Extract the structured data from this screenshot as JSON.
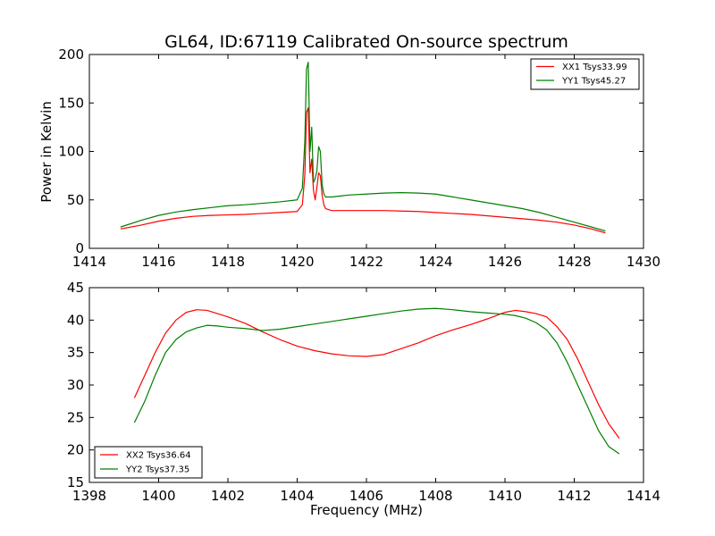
{
  "figure": {
    "title": "GL64, ID:67119 Calibrated On-source spectrum",
    "xlabel": "Frequency (MHz)",
    "top_ylabel": "Power in Kelvin"
  },
  "colors": {
    "red": "#ff0000",
    "green": "#007f00"
  },
  "chart_data": [
    {
      "type": "line",
      "title": "GL64, ID:67119 Calibrated On-source spectrum",
      "ylabel": "Power in Kelvin",
      "xlabel": "",
      "xlim": [
        1414,
        1430
      ],
      "ylim": [
        0,
        200
      ],
      "xticks": [
        1414,
        1416,
        1418,
        1420,
        1422,
        1424,
        1426,
        1428,
        1430
      ],
      "yticks": [
        0,
        50,
        100,
        150,
        200
      ],
      "grid": false,
      "legend_position": "top-right",
      "series": [
        {
          "name": "XX1 Tsys33.99",
          "color": "red",
          "x": [
            1414.9,
            1415.5,
            1416.0,
            1416.5,
            1417.0,
            1417.5,
            1418.0,
            1418.5,
            1419.0,
            1419.5,
            1420.0,
            1420.15,
            1420.22,
            1420.27,
            1420.32,
            1420.37,
            1420.42,
            1420.47,
            1420.52,
            1420.57,
            1420.62,
            1420.67,
            1420.72,
            1420.77,
            1420.82,
            1420.9,
            1421.0,
            1421.5,
            1422.0,
            1422.5,
            1423.0,
            1423.5,
            1424.0,
            1424.5,
            1425.0,
            1425.5,
            1426.0,
            1426.5,
            1427.0,
            1427.5,
            1428.0,
            1428.5,
            1428.9
          ],
          "y": [
            20,
            24,
            28,
            31,
            33,
            34,
            34.5,
            35,
            36,
            37,
            38,
            45,
            75,
            140,
            145,
            78,
            92,
            60,
            50,
            63,
            78,
            75,
            55,
            45,
            41,
            40,
            39,
            39,
            39,
            39,
            38.5,
            38,
            37,
            36,
            35,
            33.5,
            32,
            30.5,
            29,
            27,
            24,
            20,
            16
          ]
        },
        {
          "name": "YY1 Tsys45.27",
          "color": "green",
          "x": [
            1414.9,
            1415.5,
            1416.0,
            1416.5,
            1417.0,
            1417.5,
            1418.0,
            1418.5,
            1419.0,
            1419.5,
            1420.0,
            1420.15,
            1420.22,
            1420.27,
            1420.32,
            1420.37,
            1420.42,
            1420.47,
            1420.52,
            1420.57,
            1420.62,
            1420.67,
            1420.72,
            1420.77,
            1420.82,
            1420.9,
            1421.0,
            1421.5,
            1422.0,
            1422.5,
            1423.0,
            1423.5,
            1424.0,
            1424.5,
            1425.0,
            1425.5,
            1426.0,
            1426.5,
            1427.0,
            1427.5,
            1428.0,
            1428.5,
            1428.9
          ],
          "y": [
            22,
            29,
            34,
            37.5,
            40,
            42,
            44,
            45,
            46.5,
            48,
            50,
            62,
            110,
            185,
            192,
            100,
            125,
            68,
            72,
            80,
            105,
            100,
            66,
            56,
            53,
            53,
            53,
            55,
            56,
            57,
            57.5,
            57,
            56,
            53,
            50,
            47,
            44,
            41,
            37,
            32,
            27,
            22,
            18
          ]
        }
      ]
    },
    {
      "type": "line",
      "title": "",
      "xlabel": "Frequency (MHz)",
      "ylabel": "",
      "xlim": [
        1398,
        1414
      ],
      "ylim": [
        15,
        45
      ],
      "xticks": [
        1398,
        1400,
        1402,
        1404,
        1406,
        1408,
        1410,
        1412,
        1414
      ],
      "yticks": [
        15,
        20,
        25,
        30,
        35,
        40,
        45
      ],
      "grid": false,
      "legend_position": "bottom-left",
      "series": [
        {
          "name": "XX2 Tsys36.64",
          "color": "red",
          "x": [
            1399.3,
            1399.6,
            1399.9,
            1400.2,
            1400.5,
            1400.8,
            1401.1,
            1401.4,
            1401.7,
            1402.0,
            1402.5,
            1403.0,
            1403.5,
            1404.0,
            1404.5,
            1405.0,
            1405.5,
            1406.0,
            1406.5,
            1407.0,
            1407.5,
            1408.0,
            1408.5,
            1409.0,
            1409.5,
            1410.0,
            1410.3,
            1410.6,
            1410.9,
            1411.2,
            1411.5,
            1411.8,
            1412.1,
            1412.4,
            1412.7,
            1413.0,
            1413.3
          ],
          "y": [
            28,
            31.5,
            35,
            38,
            40,
            41.2,
            41.6,
            41.5,
            41,
            40.5,
            39.5,
            38.2,
            37,
            36,
            35.3,
            34.8,
            34.5,
            34.4,
            34.7,
            35.6,
            36.5,
            37.6,
            38.5,
            39.3,
            40.2,
            41.2,
            41.5,
            41.3,
            41,
            40.5,
            39,
            37,
            34,
            30.5,
            27,
            24,
            21.8
          ]
        },
        {
          "name": "YY2 Tsys37.35",
          "color": "green",
          "x": [
            1399.3,
            1399.6,
            1399.9,
            1400.2,
            1400.5,
            1400.8,
            1401.1,
            1401.4,
            1401.7,
            1402.0,
            1402.5,
            1403.0,
            1403.5,
            1404.0,
            1404.5,
            1405.0,
            1405.5,
            1406.0,
            1406.5,
            1407.0,
            1407.5,
            1408.0,
            1408.5,
            1409.0,
            1409.5,
            1410.0,
            1410.3,
            1410.6,
            1410.9,
            1411.2,
            1411.5,
            1411.8,
            1412.1,
            1412.4,
            1412.7,
            1413.0,
            1413.3
          ],
          "y": [
            24.2,
            27.5,
            31.5,
            35,
            37,
            38.2,
            38.8,
            39.2,
            39.1,
            38.9,
            38.7,
            38.4,
            38.6,
            39,
            39.4,
            39.8,
            40.2,
            40.6,
            41,
            41.4,
            41.7,
            41.8,
            41.6,
            41.3,
            41.1,
            40.9,
            40.7,
            40.3,
            39.6,
            38.5,
            36.5,
            33.5,
            30,
            26.5,
            23,
            20.5,
            19.4
          ]
        }
      ]
    }
  ]
}
